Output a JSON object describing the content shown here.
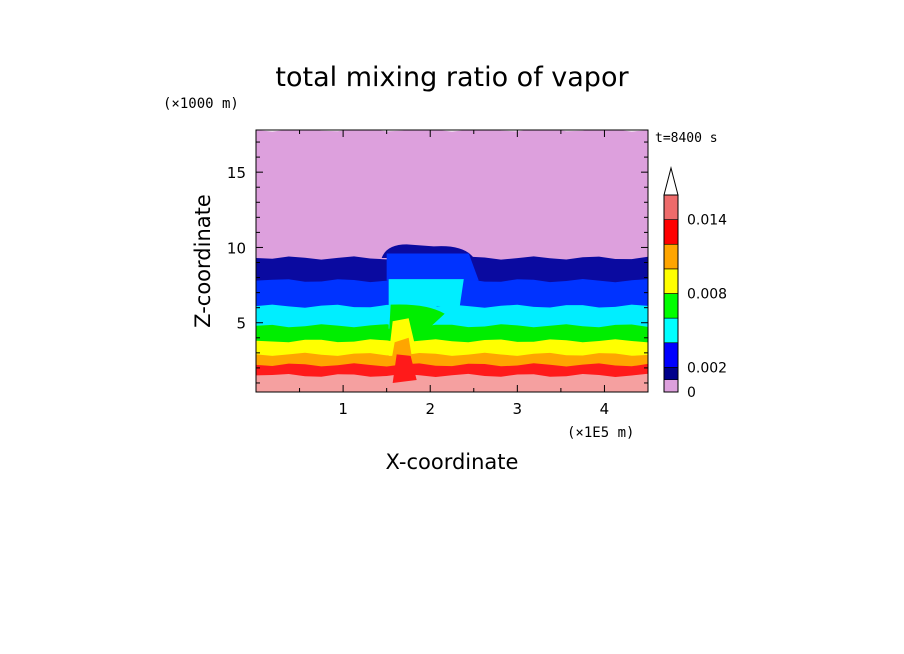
{
  "chart_data": {
    "type": "heatmap",
    "title": "total mixing ratio of vapor",
    "xlabel": "X-coordinate",
    "ylabel": "Z-coordinate",
    "x_unit": "(×1E5 m)",
    "y_unit": "(×1000 m)",
    "time_label": "t=8400 s",
    "xlim": [
      0,
      4.5
    ],
    "ylim": [
      0.4,
      17.8
    ],
    "x_ticks": [
      1,
      2,
      3,
      4
    ],
    "y_ticks": [
      5,
      10,
      15
    ],
    "colorbar": {
      "levels": [
        0,
        0.001,
        0.002,
        0.004,
        0.006,
        0.008,
        0.01,
        0.012,
        0.014,
        0.016
      ],
      "labeled_levels": [
        "0",
        "0.002",
        "0.008",
        "0.014"
      ],
      "colors": [
        "#dda0dd",
        "#00008b",
        "#0000ff",
        "#00ffff",
        "#00ff00",
        "#ffff00",
        "#ffa500",
        "#ff0000",
        "#ee6b6b",
        "#ffc0c0"
      ],
      "extend_top": true
    },
    "layers": [
      {
        "z_top": 17.8,
        "color": "#dda0dd"
      },
      {
        "z_top": 9.3,
        "color": "#0a0aa0"
      },
      {
        "z_top": 7.8,
        "color": "#0033ff"
      },
      {
        "z_top": 6.1,
        "color": "#00eeff"
      },
      {
        "z_top": 4.8,
        "color": "#00ee00"
      },
      {
        "z_top": 3.8,
        "color": "#ffff00"
      },
      {
        "z_top": 2.9,
        "color": "#ffa500"
      },
      {
        "z_top": 2.2,
        "color": "#ff1a1a"
      },
      {
        "z_top": 1.5,
        "color": "#f5a0a0"
      }
    ],
    "plume": {
      "x_range": [
        1.5,
        2.5
      ],
      "cap_z": 10.2,
      "color": "#0a0aa0"
    }
  }
}
